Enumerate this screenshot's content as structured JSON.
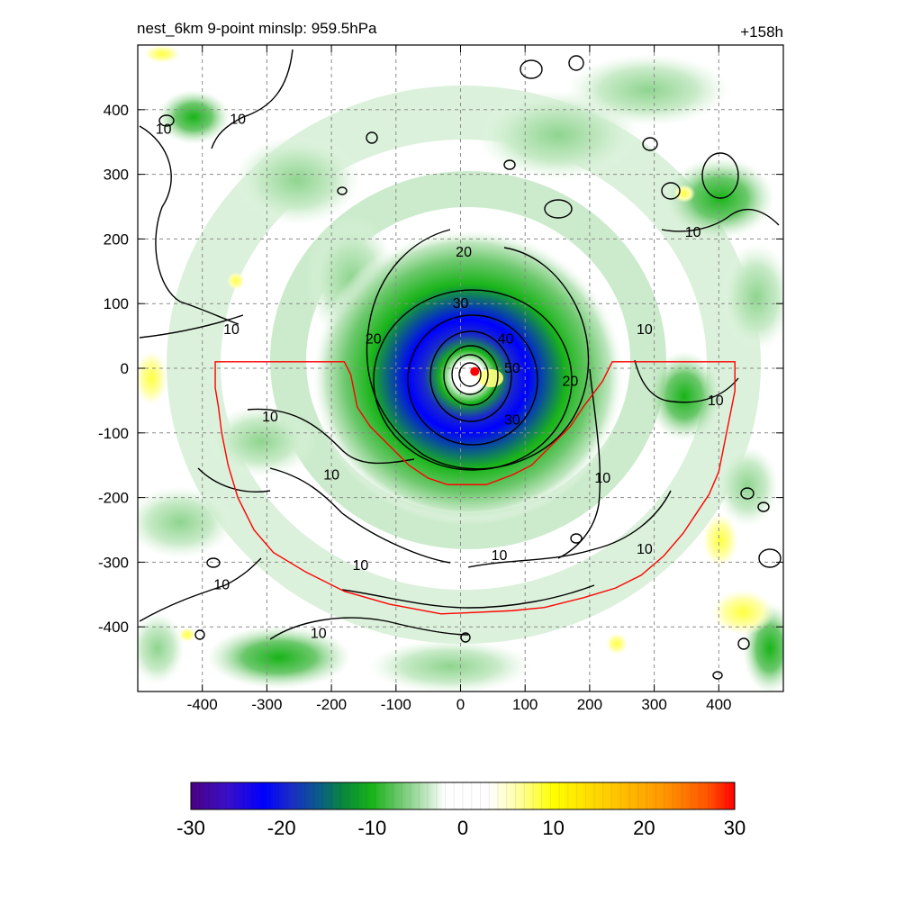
{
  "chart_data": {
    "type": "heatmap",
    "title_left": "nest_6km  9-point minslp: 959.5hPa",
    "title_right": "+158h",
    "xlabel": "",
    "ylabel": "",
    "xlim": [
      -500,
      500
    ],
    "ylim": [
      -500,
      500
    ],
    "xticks": [
      -400,
      -300,
      -200,
      -100,
      0,
      100,
      200,
      300,
      400
    ],
    "yticks": [
      400,
      300,
      200,
      100,
      0,
      -100,
      -200,
      -300,
      -400
    ],
    "grid": true,
    "colorbar": {
      "range": [
        -30,
        30
      ],
      "ticks": [
        -30,
        -20,
        -10,
        0,
        10,
        20,
        30
      ],
      "stops": [
        {
          "value": -30,
          "color": "#4b0082"
        },
        {
          "value": -26,
          "color": "#3a10c8"
        },
        {
          "value": -22,
          "color": "#0000ff"
        },
        {
          "value": -19,
          "color": "#1a2cc8"
        },
        {
          "value": -16,
          "color": "#0a5a8c"
        },
        {
          "value": -13,
          "color": "#0a8a3a"
        },
        {
          "value": -10,
          "color": "#19b419"
        },
        {
          "value": -7,
          "color": "#6cc86c"
        },
        {
          "value": -4,
          "color": "#bfe6bf"
        },
        {
          "value": -2,
          "color": "#ffffff"
        },
        {
          "value": 3,
          "color": "#ffffff"
        },
        {
          "value": 6,
          "color": "#ffffa8"
        },
        {
          "value": 10,
          "color": "#ffff00"
        },
        {
          "value": 16,
          "color": "#ffcc00"
        },
        {
          "value": 22,
          "color": "#ff9900"
        },
        {
          "value": 27,
          "color": "#ff5500"
        },
        {
          "value": 30,
          "color": "#ff0000"
        }
      ]
    },
    "contour_labels": [
      {
        "text": "10",
        "x": -460,
        "y": 370
      },
      {
        "text": "10",
        "x": -345,
        "y": 385
      },
      {
        "text": "10",
        "x": -355,
        "y": 60
      },
      {
        "text": "10",
        "x": -295,
        "y": -75
      },
      {
        "text": "10",
        "x": -200,
        "y": -165
      },
      {
        "text": "10",
        "x": -370,
        "y": -335
      },
      {
        "text": "10",
        "x": -220,
        "y": -410
      },
      {
        "text": "10",
        "x": -155,
        "y": -305
      },
      {
        "text": "10",
        "x": 60,
        "y": -290
      },
      {
        "text": "10",
        "x": 220,
        "y": -170
      },
      {
        "text": "10",
        "x": 285,
        "y": -280
      },
      {
        "text": "10",
        "x": 285,
        "y": 60
      },
      {
        "text": "10",
        "x": 395,
        "y": -50
      },
      {
        "text": "10",
        "x": 360,
        "y": 210
      },
      {
        "text": "20",
        "x": 5,
        "y": 180
      },
      {
        "text": "20",
        "x": -135,
        "y": 45
      },
      {
        "text": "20",
        "x": 170,
        "y": -20
      },
      {
        "text": "30",
        "x": 0,
        "y": 100
      },
      {
        "text": "30",
        "x": 80,
        "y": -80
      },
      {
        "text": "40",
        "x": 70,
        "y": 45
      },
      {
        "text": "50",
        "x": 80,
        "y": 0
      }
    ],
    "storm_center": {
      "x": 22,
      "y": -5
    },
    "red_polygon": [
      [
        -380,
        10
      ],
      [
        -180,
        10
      ],
      [
        -170,
        -10
      ],
      [
        -160,
        -60
      ],
      [
        -140,
        -90
      ],
      [
        -110,
        -120
      ],
      [
        -80,
        -150
      ],
      [
        -50,
        -170
      ],
      [
        -20,
        -180
      ],
      [
        40,
        -180
      ],
      [
        80,
        -165
      ],
      [
        110,
        -150
      ],
      [
        140,
        -120
      ],
      [
        170,
        -90
      ],
      [
        190,
        -60
      ],
      [
        220,
        -20
      ],
      [
        235,
        10
      ],
      [
        425,
        10
      ],
      [
        425,
        -35
      ],
      [
        410,
        -110
      ],
      [
        400,
        -160
      ],
      [
        385,
        -195
      ],
      [
        365,
        -225
      ],
      [
        345,
        -255
      ],
      [
        315,
        -290
      ],
      [
        280,
        -320
      ],
      [
        240,
        -340
      ],
      [
        190,
        -355
      ],
      [
        130,
        -370
      ],
      [
        80,
        -375
      ],
      [
        -30,
        -380
      ],
      [
        -110,
        -365
      ],
      [
        -180,
        -345
      ],
      [
        -240,
        -315
      ],
      [
        -290,
        -285
      ],
      [
        -320,
        -250
      ],
      [
        -345,
        -200
      ],
      [
        -360,
        -150
      ],
      [
        -370,
        -100
      ],
      [
        -375,
        -60
      ],
      [
        -380,
        -30
      ]
    ]
  }
}
